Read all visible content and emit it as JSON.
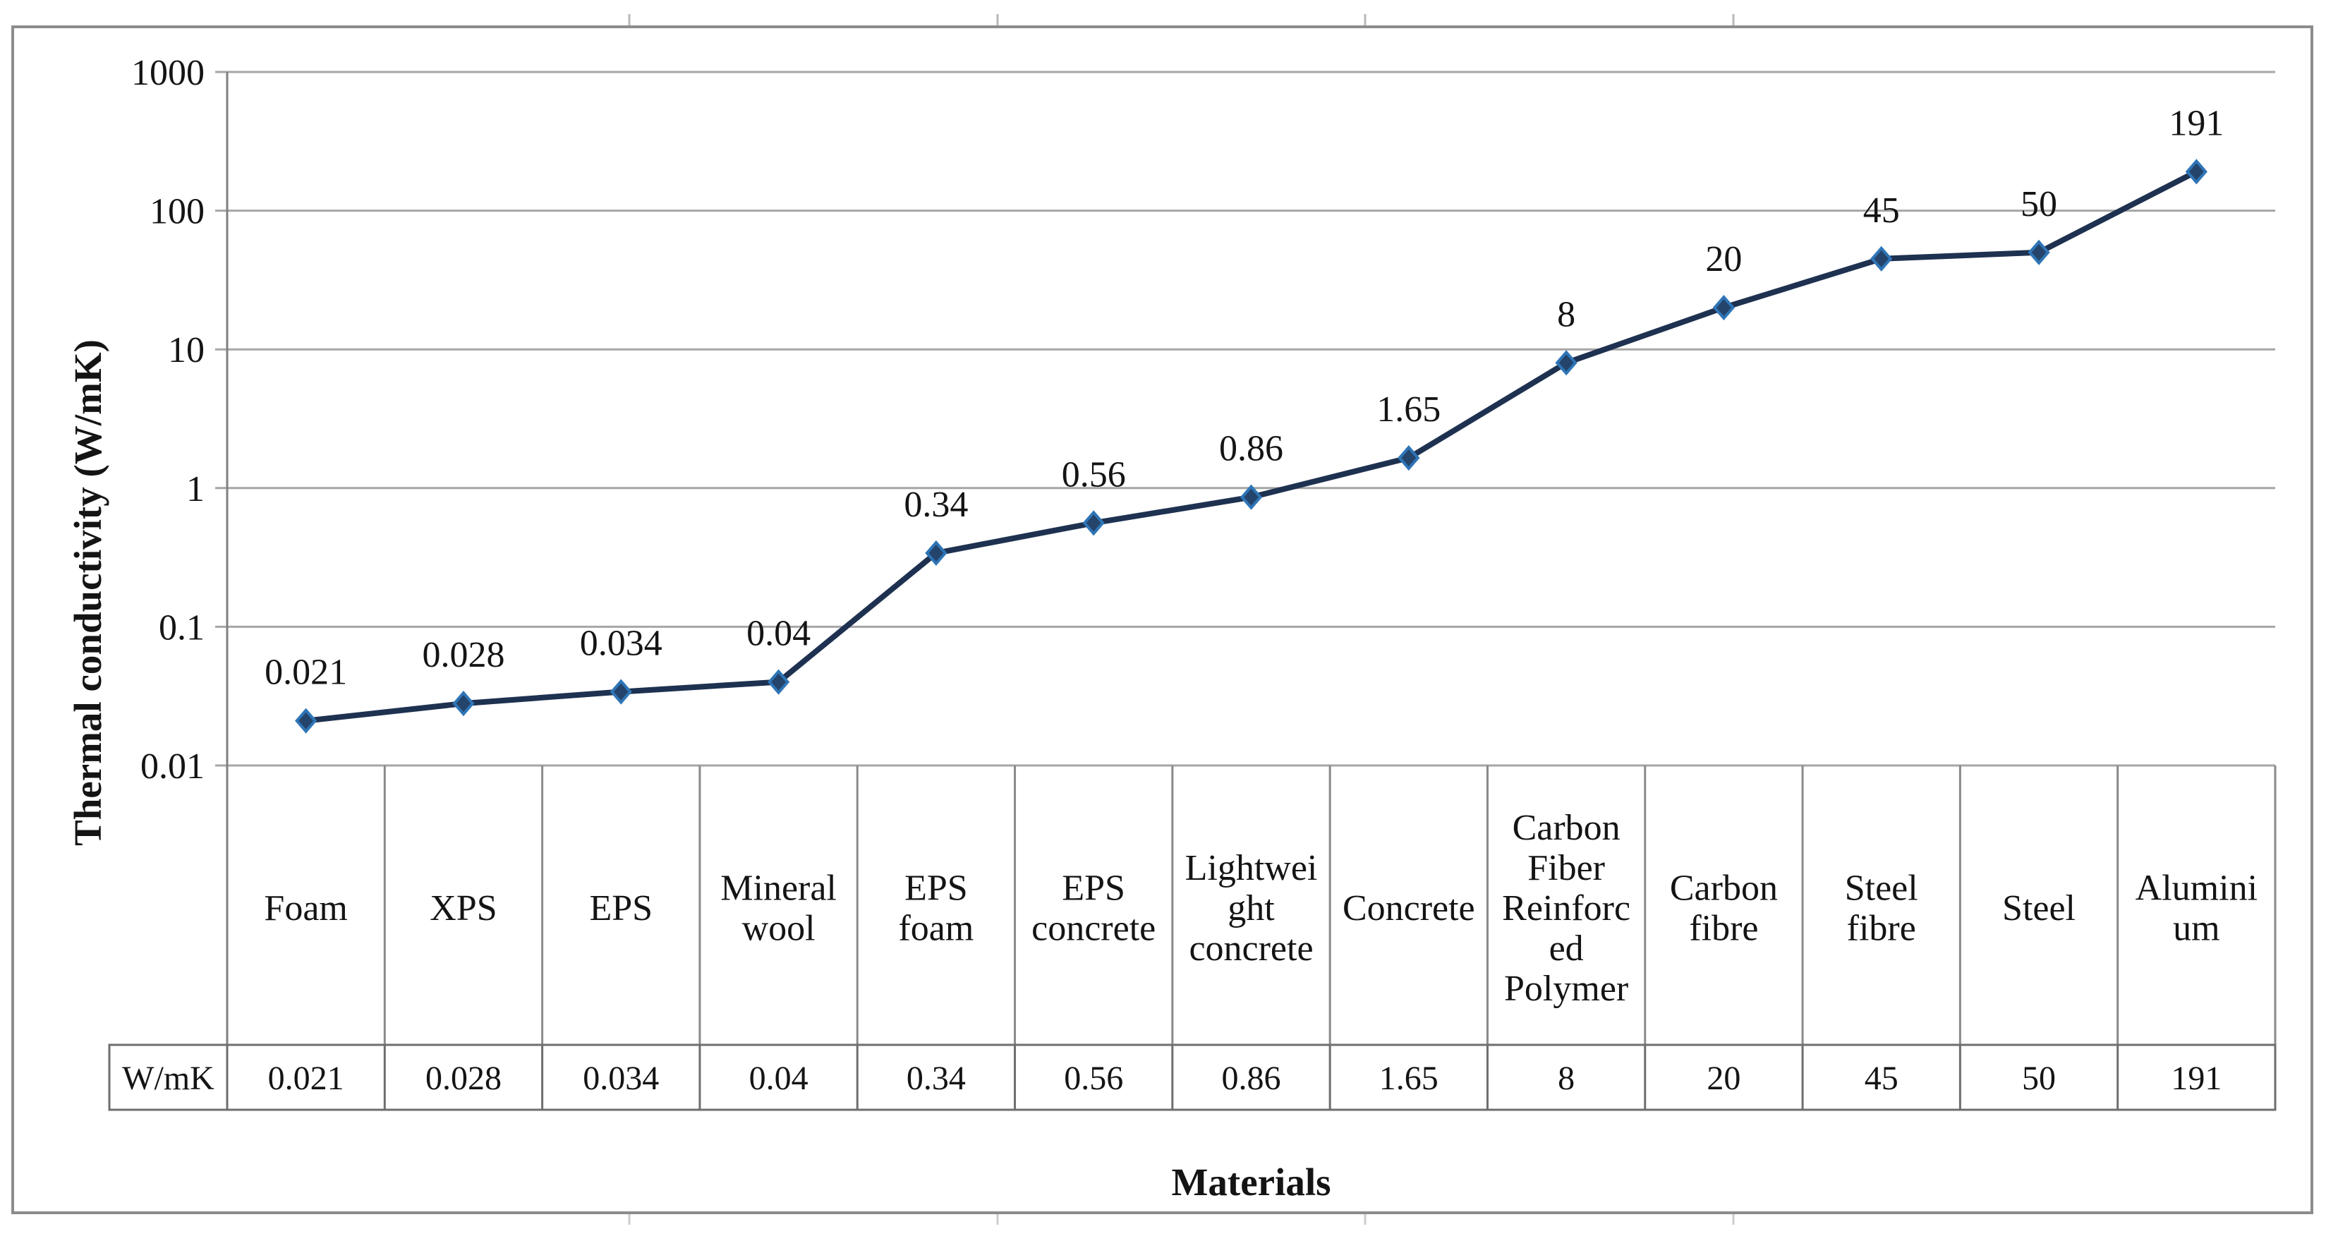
{
  "figure": {
    "background": "#ffffff",
    "border_color": "#8c8c8c"
  },
  "chart_data": {
    "type": "line",
    "title": "",
    "xlabel": "Materials",
    "ylabel": "Thermal conductivity (W/mK)",
    "y_scale": "log",
    "ylim": [
      0.01,
      1000
    ],
    "y_ticks": [
      1000,
      100,
      10,
      1,
      0.1,
      0.01
    ],
    "y_tick_labels": [
      "1000",
      "100",
      "10",
      "1",
      "0.1",
      "0.01"
    ],
    "grid": true,
    "legend": "none",
    "categories": [
      "Foam",
      "XPS",
      "EPS",
      "Mineral wool",
      "EPS foam",
      "EPS concrete",
      "Lightweight concrete",
      "Concrete",
      "Carbon Fiber Reinforced Polymer",
      "Carbon fibre",
      "Steel fibre",
      "Steel",
      "Aluminium"
    ],
    "category_display_lines": [
      [
        "Foam"
      ],
      [
        "XPS"
      ],
      [
        "EPS"
      ],
      [
        "Mineral",
        "wool"
      ],
      [
        "EPS",
        "foam"
      ],
      [
        "EPS",
        "concrete"
      ],
      [
        "Lightwei",
        "ght",
        "concrete"
      ],
      [
        "Concrete"
      ],
      [
        "Carbon",
        "Fiber",
        "Reinforc",
        "ed",
        "Polymer"
      ],
      [
        "Carbon",
        "fibre"
      ],
      [
        "Steel",
        "fibre"
      ],
      [
        "Steel"
      ],
      [
        "Alumini",
        "um"
      ]
    ],
    "series": [
      {
        "name": "Thermal conductivity (W/mK)",
        "values": [
          0.021,
          0.028,
          0.034,
          0.04,
          0.34,
          0.56,
          0.86,
          1.65,
          8,
          20,
          45,
          50,
          191
        ],
        "data_labels": [
          "0.021",
          "0.028",
          "0.034",
          "0.04",
          "0.34",
          "0.56",
          "0.86",
          "1.65",
          "8",
          "20",
          "45",
          "50",
          "191"
        ]
      }
    ],
    "data_table": {
      "row_header": "W/mK",
      "values": [
        "0.021",
        "0.028",
        "0.034",
        "0.04",
        "0.34",
        "0.56",
        "0.86",
        "1.65",
        "8",
        "20",
        "45",
        "50",
        "191"
      ]
    },
    "colors": {
      "line": "#1e3150",
      "marker_fill": "#24446b",
      "marker_stroke": "#2e75b6",
      "gridline": "#a6a6a6",
      "axis": "#808080",
      "table_border": "#6e6e6e",
      "category_border": "#8a8a8a",
      "page_tick": "#b8b8b8",
      "text": "#141414"
    }
  }
}
